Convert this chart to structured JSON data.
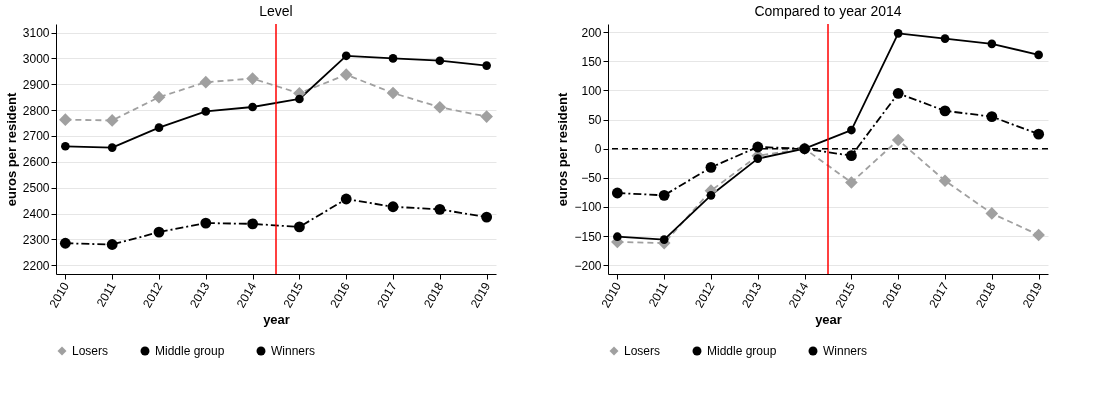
{
  "chart_data": [
    {
      "type": "line",
      "title": "Level",
      "xlabel": "year",
      "ylabel": "euros per resident",
      "x": [
        2010,
        2011,
        2012,
        2013,
        2014,
        2015,
        2016,
        2017,
        2018,
        2019
      ],
      "xlim": [
        2009.8,
        2019.2
      ],
      "xticks": [
        2010,
        2011,
        2012,
        2013,
        2014,
        2015,
        2016,
        2017,
        2018,
        2019
      ],
      "ylim": [
        2166,
        3133
      ],
      "yticks": [
        2200,
        2300,
        2400,
        2500,
        2600,
        2700,
        2800,
        2900,
        3000,
        3100
      ],
      "grid": "y",
      "legend": "bottom",
      "series": [
        {
          "name": "Losers",
          "color": "#a0a0a0",
          "marker": "diamond",
          "line_style": "dashed",
          "values": [
            2763,
            2760,
            2850,
            2908,
            2922,
            2865,
            2937,
            2866,
            2811,
            2775
          ]
        },
        {
          "name": "Middle group",
          "color": "#000000",
          "marker": "circle",
          "line_style": "dashdot",
          "values": [
            2285,
            2280,
            2328,
            2363,
            2360,
            2348,
            2456,
            2426,
            2416,
            2386
          ]
        },
        {
          "name": "Winners",
          "color": "#000000",
          "marker": "circle",
          "line_style": "solid",
          "values": [
            2660,
            2655,
            2732,
            2795,
            2812,
            2843,
            3010,
            3000,
            2991,
            2972
          ]
        }
      ],
      "ref_lines": [
        {
          "axis": "x",
          "value": 2014.5,
          "color": "#ff0000",
          "line_style": "solid"
        }
      ]
    },
    {
      "type": "line",
      "title": "Compared to year 2014",
      "xlabel": "year",
      "ylabel": "euros per resident",
      "x": [
        2010,
        2011,
        2012,
        2013,
        2014,
        2015,
        2016,
        2017,
        2018,
        2019
      ],
      "xlim": [
        2009.8,
        2019.2
      ],
      "xticks": [
        2010,
        2011,
        2012,
        2013,
        2014,
        2015,
        2016,
        2017,
        2018,
        2019
      ],
      "ylim": [
        -215,
        214
      ],
      "yticks": [
        -200,
        -150,
        -100,
        -50,
        0,
        50,
        100,
        150,
        200
      ],
      "grid": "y",
      "legend": "bottom",
      "series": [
        {
          "name": "Losers",
          "color": "#a0a0a0",
          "marker": "diamond",
          "line_style": "dashed",
          "values": [
            -160,
            -162,
            -72,
            -12,
            0,
            -58,
            15,
            -55,
            -111,
            -148
          ]
        },
        {
          "name": "Middle group",
          "color": "#000000",
          "marker": "circle",
          "line_style": "dashdot",
          "values": [
            -76,
            -80,
            -32,
            3,
            0,
            -12,
            95,
            65,
            55,
            25
          ]
        },
        {
          "name": "Winners",
          "color": "#000000",
          "marker": "circle",
          "line_style": "solid",
          "values": [
            -151,
            -156,
            -80,
            -17,
            0,
            32,
            198,
            189,
            180,
            161
          ]
        }
      ],
      "ref_lines": [
        {
          "axis": "x",
          "value": 2014.5,
          "color": "#ff0000",
          "line_style": "solid"
        },
        {
          "axis": "y",
          "value": 0,
          "color": "#000000",
          "line_style": "dashed"
        }
      ]
    }
  ]
}
